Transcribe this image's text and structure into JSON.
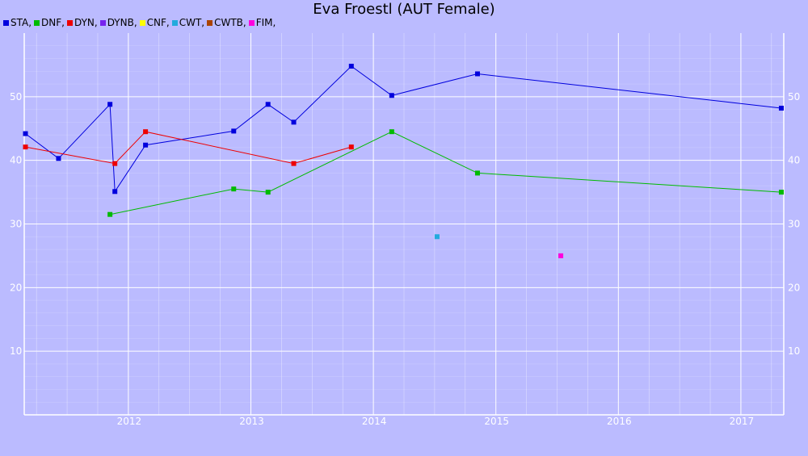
{
  "chart_data": {
    "type": "line",
    "title": "Eva Froestl (AUT Female)",
    "xlabel": "",
    "ylabel": "",
    "grid": true,
    "legend_placement": "top-left",
    "background_color": "#bbbbff",
    "gridline_color": "#ffffff",
    "xlim": [
      2011.15,
      2017.35
    ],
    "ylim": [
      0,
      60
    ],
    "x_ticks": [
      2012,
      2013,
      2014,
      2015,
      2016,
      2017
    ],
    "x_tick_labels": [
      "2012",
      "2013",
      "2014",
      "2015",
      "2016",
      "2017"
    ],
    "y_ticks": [
      10,
      20,
      30,
      40,
      50
    ],
    "y_tick_labels": [
      "10",
      "20",
      "30",
      "40",
      "50"
    ],
    "legend": [
      {
        "label": "STA,",
        "color": "#0000dd"
      },
      {
        "label": "DNF,",
        "color": "#00bb00"
      },
      {
        "label": "DYN,",
        "color": "#ee0000"
      },
      {
        "label": "DYNB,",
        "color": "#7722ee"
      },
      {
        "label": "CNF,",
        "color": "#ffff00"
      },
      {
        "label": "CWT,",
        "color": "#22aadd"
      },
      {
        "label": "CWTB,",
        "color": "#aa4400"
      },
      {
        "label": "FIM,",
        "color": "#ff00dd"
      }
    ],
    "series": [
      {
        "name": "STA",
        "color": "#0000dd",
        "points": [
          [
            2011.16,
            44.2
          ],
          [
            2011.43,
            40.3
          ],
          [
            2011.85,
            48.8
          ],
          [
            2011.89,
            35.1
          ],
          [
            2012.14,
            42.4
          ],
          [
            2012.86,
            44.6
          ],
          [
            2013.14,
            48.8
          ],
          [
            2013.35,
            46.0
          ],
          [
            2013.82,
            54.8
          ],
          [
            2014.15,
            50.2
          ],
          [
            2014.85,
            53.6
          ],
          [
            2017.33,
            48.2
          ]
        ]
      },
      {
        "name": "DNF",
        "color": "#00bb00",
        "points": [
          [
            2011.85,
            31.5
          ],
          [
            2012.86,
            35.5
          ],
          [
            2013.14,
            35.0
          ],
          [
            2014.15,
            44.5
          ],
          [
            2014.85,
            38.0
          ],
          [
            2017.33,
            35.0
          ]
        ]
      },
      {
        "name": "DYN",
        "color": "#ee0000",
        "points": [
          [
            2011.16,
            42.1
          ],
          [
            2011.89,
            39.5
          ],
          [
            2012.14,
            44.5
          ],
          [
            2013.35,
            39.5
          ],
          [
            2013.82,
            42.1
          ]
        ]
      },
      {
        "name": "CWT",
        "color": "#22aadd",
        "points": [
          [
            2014.52,
            28.0
          ]
        ]
      },
      {
        "name": "FIM",
        "color": "#ff00dd",
        "points": [
          [
            2015.53,
            25.0
          ]
        ]
      }
    ]
  }
}
